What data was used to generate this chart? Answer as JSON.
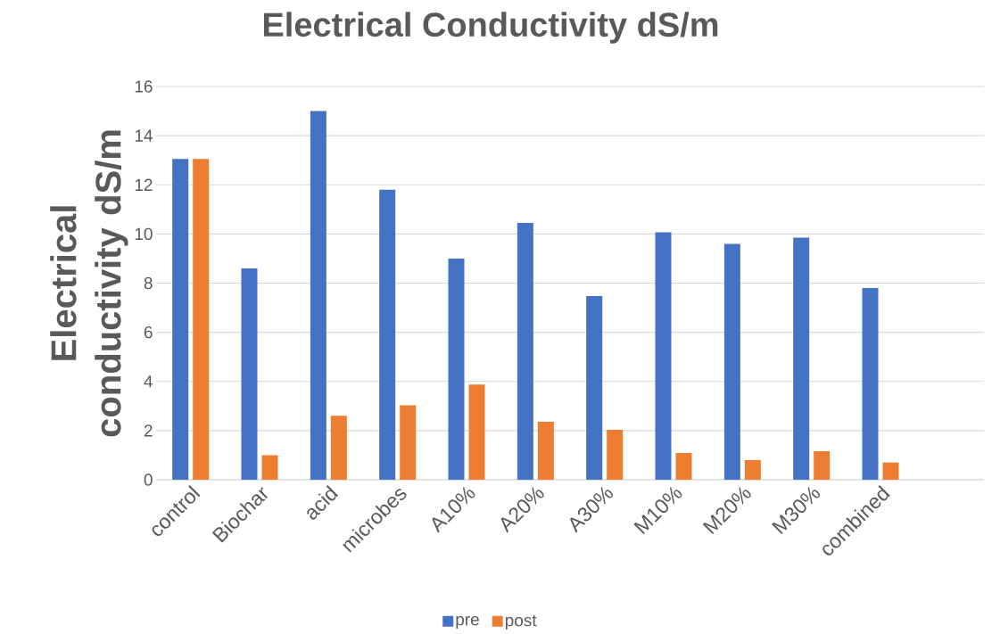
{
  "chart_data": {
    "type": "bar",
    "title": "Electrical Conductivity dS/m",
    "ylabel": "Electrical conductivity dS/m",
    "categories": [
      "control",
      "Biochar",
      "acid",
      "microbes",
      "A10%",
      "A20%",
      "A30%",
      "M10%",
      "M20%",
      "M30%",
      "combined",
      null
    ],
    "series": [
      {
        "name": "pre",
        "color": "#4472c4",
        "values": [
          13.05,
          8.6,
          15.0,
          11.8,
          9.0,
          10.45,
          7.47,
          10.07,
          9.6,
          9.85,
          7.8,
          null
        ]
      },
      {
        "name": "post",
        "color": "#ed7d31",
        "values": [
          13.05,
          1.0,
          2.6,
          3.03,
          3.87,
          2.36,
          2.03,
          1.09,
          0.8,
          1.16,
          0.7,
          null
        ]
      }
    ],
    "ylim": [
      0,
      16
    ],
    "yticks": [
      0,
      2,
      4,
      6,
      8,
      10,
      12,
      14,
      16
    ],
    "grid": "y",
    "legend": "bottom"
  }
}
